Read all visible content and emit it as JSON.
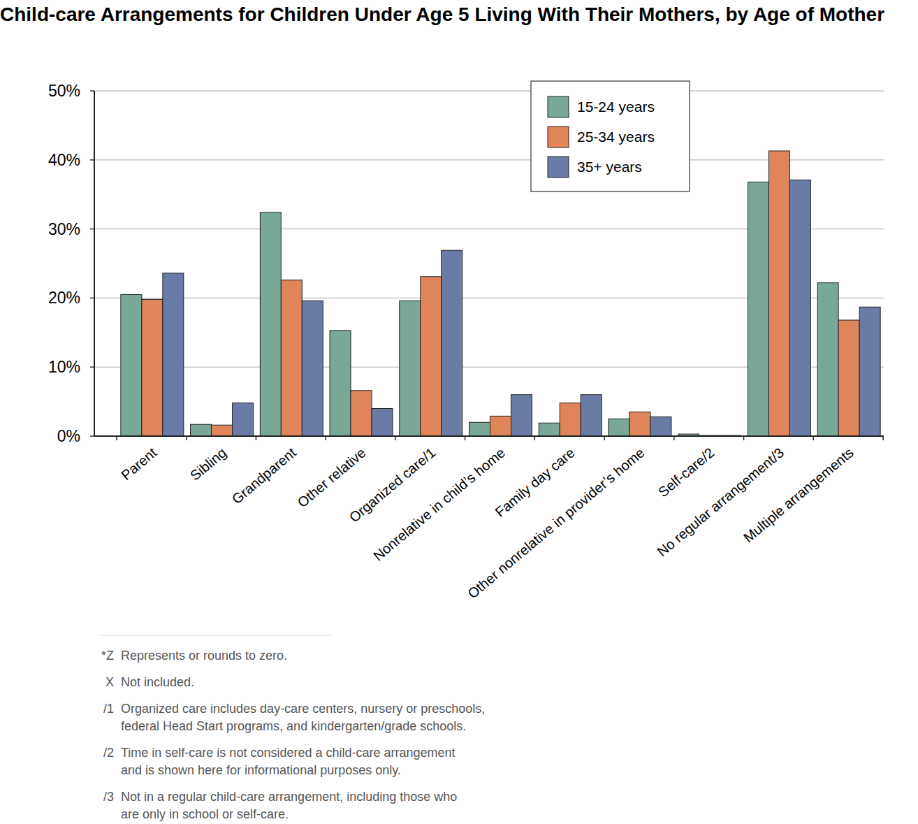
{
  "chart_data": {
    "type": "bar",
    "title": "Child-care Arrangements for Children Under Age 5 Living With Their Mothers, by Age of Mother",
    "categories": [
      "Parent",
      "Sibling",
      "Grandparent",
      "Other relative",
      "Organized care/1",
      "Nonrelative in child’s home",
      "Family day care",
      "Other nonrelative in provider’s home",
      "Self-care/2",
      "No regular arrangement/3",
      "Multiple arrangements"
    ],
    "series": [
      {
        "name": "15-24 years",
        "color": "#7aa896",
        "values": [
          20.5,
          1.7,
          32.4,
          15.3,
          19.6,
          2.0,
          1.9,
          2.5,
          0.3,
          36.8,
          22.2
        ]
      },
      {
        "name": "25-34 years",
        "color": "#e0855a",
        "values": [
          19.8,
          1.6,
          22.6,
          6.6,
          23.1,
          2.9,
          4.8,
          3.5,
          0.1,
          41.3,
          16.8
        ]
      },
      {
        "name": "35+ years",
        "color": "#6a7ca6",
        "values": [
          23.6,
          4.8,
          19.6,
          4.0,
          26.9,
          6.0,
          6.0,
          2.8,
          0.1,
          37.1,
          18.7
        ]
      }
    ],
    "ylim": [
      0,
      50
    ],
    "yticks": [
      {
        "value": 0,
        "label": "0%"
      },
      {
        "value": 10,
        "label": "10%"
      },
      {
        "value": 20,
        "label": "20%"
      },
      {
        "value": 30,
        "label": "30%"
      },
      {
        "value": 40,
        "label": "40%"
      },
      {
        "value": 50,
        "label": "50%"
      }
    ],
    "grid": true,
    "legend": "upper right",
    "notes": [
      {
        "symbol": "*Z",
        "lines": [
          "Represents or rounds to zero."
        ]
      },
      {
        "symbol": "X",
        "lines": [
          "Not included."
        ]
      },
      {
        "symbol": "/1",
        "lines": [
          "Organized care includes day-care centers, nursery or preschools,",
          "federal Head Start programs, and kindergarten/grade schools."
        ]
      },
      {
        "symbol": "/2",
        "lines": [
          "Time in self-care is not considered a child-care arrangement",
          "and is shown here for informational purposes only."
        ]
      },
      {
        "symbol": "/3",
        "lines": [
          "Not in a regular child-care arrangement, including those who",
          "are only in school or self-care."
        ]
      }
    ]
  }
}
